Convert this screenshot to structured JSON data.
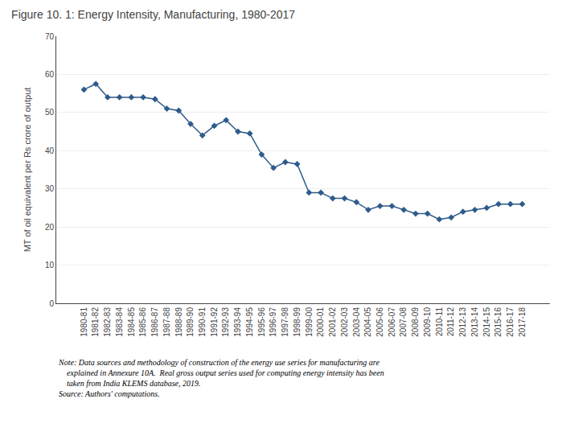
{
  "chart_data": {
    "type": "line",
    "title": "Figure 10. 1: Energy Intensity, Manufacturing, 1980-2017",
    "y_label": "MT of oil equivalent per Rs crore of output",
    "categories": [
      "1980-81",
      "1981-82",
      "1982-83",
      "1983-84",
      "1984-85",
      "1985-86",
      "1986-87",
      "1987-88",
      "1988-89",
      "1989-90",
      "1990-91",
      "1991-92",
      "1992-93",
      "1993-94",
      "1994-95",
      "1995-96",
      "1996-97",
      "1997-98",
      "1998-99",
      "1999-00",
      "2000-01",
      "2001-02",
      "2002-03",
      "2003-04",
      "2004-05",
      "2005-06",
      "2006-07",
      "2007-08",
      "2008-09",
      "2009-10",
      "2010-11",
      "2011-12",
      "2012-13",
      "2013-14",
      "2014-15",
      "2015-16",
      "2016-17",
      "2017-18"
    ],
    "values": [
      56.0,
      57.5,
      54.0,
      54.0,
      54.0,
      54.0,
      53.5,
      51.0,
      50.5,
      47.0,
      44.0,
      46.5,
      48.0,
      45.0,
      44.5,
      39.0,
      35.5,
      37.0,
      36.5,
      29.0,
      29.0,
      27.5,
      27.5,
      26.5,
      24.5,
      25.5,
      25.5,
      24.5,
      23.5,
      23.5,
      22.0,
      22.5,
      24.0,
      24.5,
      25.0,
      26.0,
      26.0,
      26.0
    ],
    "color": "#2E5B8A",
    "marker": "diamond",
    "ylim": [
      0,
      70
    ],
    "yticks": [
      0,
      10,
      20,
      30,
      40,
      50,
      60,
      70
    ],
    "grid": true,
    "annotations": [
      "Note: Data sources and methodology of construction of the energy use series for manufacturing are\n    explained in Annexure 10A.  Real gross output series used for computing energy intensity has been\n    taken from India KLEMS database, 2019.\nSource: Authors' computations."
    ]
  }
}
